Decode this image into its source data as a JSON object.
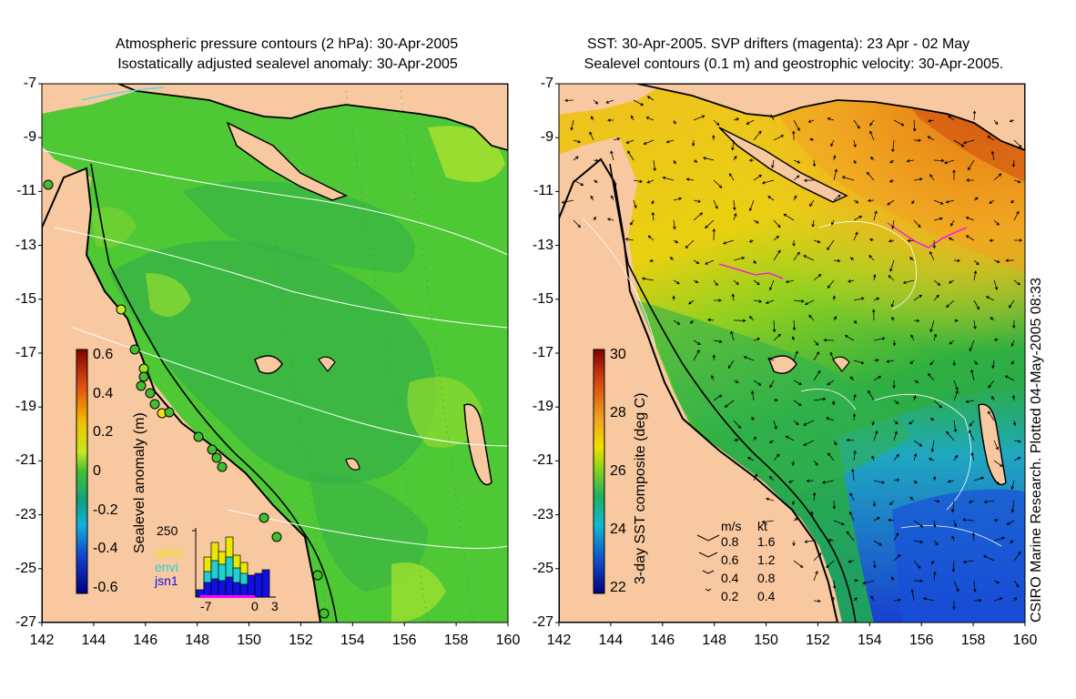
{
  "left_panel": {
    "title_line1": "Atmospheric pressure contours (2 hPa): 30-Apr-2005",
    "title_line2": "Isostatically adjusted sealevel anomaly: 30-Apr-2005",
    "colorbar": {
      "label": "Sealevel anomaly (m)",
      "ticks": [
        "0.6",
        "0.4",
        "0.2",
        "0",
        "-0.2",
        "-0.4",
        "-0.6"
      ],
      "range": [
        -0.6,
        0.6
      ]
    },
    "histogram": {
      "y_tick": "250",
      "x_ticks": [
        "-7",
        "0",
        "3"
      ],
      "legend": [
        {
          "name": "GFO",
          "color": "#e8e800"
        },
        {
          "name": "envi",
          "color": "#20d0d0"
        },
        {
          "name": "jsn1",
          "color": "#1010e0"
        }
      ]
    }
  },
  "right_panel": {
    "title_line1": "SST: 30-Apr-2005. SVP drifters (magenta): 23 Apr - 02 May",
    "title_line2": "Sealevel contours (0.1 m) and geostrophic velocity: 30-Apr-2005.",
    "colorbar": {
      "label": "3-day SST composite (deg C)",
      "ticks": [
        "30",
        "28",
        "26",
        "24",
        "22"
      ],
      "range": [
        22,
        30
      ]
    },
    "velocity_legend": {
      "header_ms": "m/s",
      "header_kt": "kt",
      "rows": [
        {
          "ms": "0.8",
          "kt": "1.6"
        },
        {
          "ms": "0.6",
          "kt": "1.2"
        },
        {
          "ms": "0.4",
          "kt": "0.8"
        },
        {
          "ms": "0.2",
          "kt": "0.4"
        }
      ]
    },
    "credit": "CSIRO Marine Research. Plotted 04-May-2005 08:33"
  },
  "axes": {
    "lat_ticks": [
      "-7",
      "-9",
      "-11",
      "-13",
      "-15",
      "-17",
      "-19",
      "-21",
      "-23",
      "-25",
      "-27"
    ],
    "lon_ticks": [
      "142",
      "144",
      "146",
      "148",
      "150",
      "152",
      "154",
      "156",
      "158",
      "160"
    ],
    "lon_range": [
      142,
      160
    ],
    "lat_range": [
      -27,
      -7
    ]
  },
  "colors": {
    "land": "#f8c8a0",
    "sea_left": "#46c832",
    "sst_warm": "#f0a020",
    "sst_cool": "#2080d0",
    "drifter": "#ff00ff"
  }
}
